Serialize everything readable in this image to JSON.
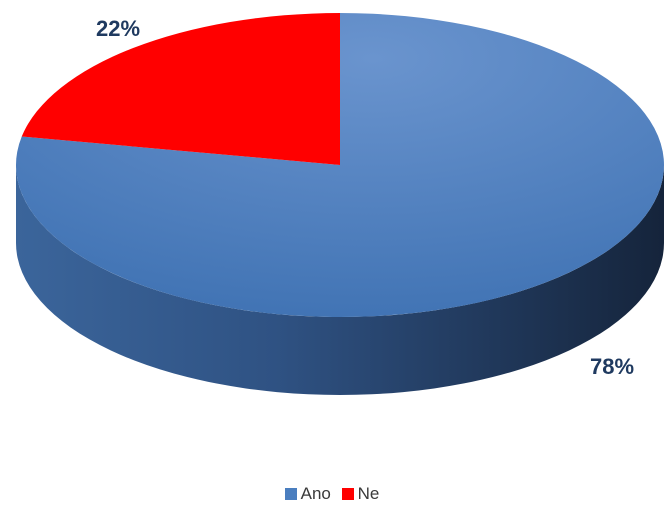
{
  "chart_data": {
    "type": "pie",
    "categories": [
      "Ano",
      "Ne"
    ],
    "values": [
      78,
      22
    ],
    "data_labels": [
      "78%",
      "22%"
    ],
    "colors": [
      "#4a7ebf",
      "#ff0000"
    ],
    "legend_position": "bottom",
    "three_d": true
  }
}
